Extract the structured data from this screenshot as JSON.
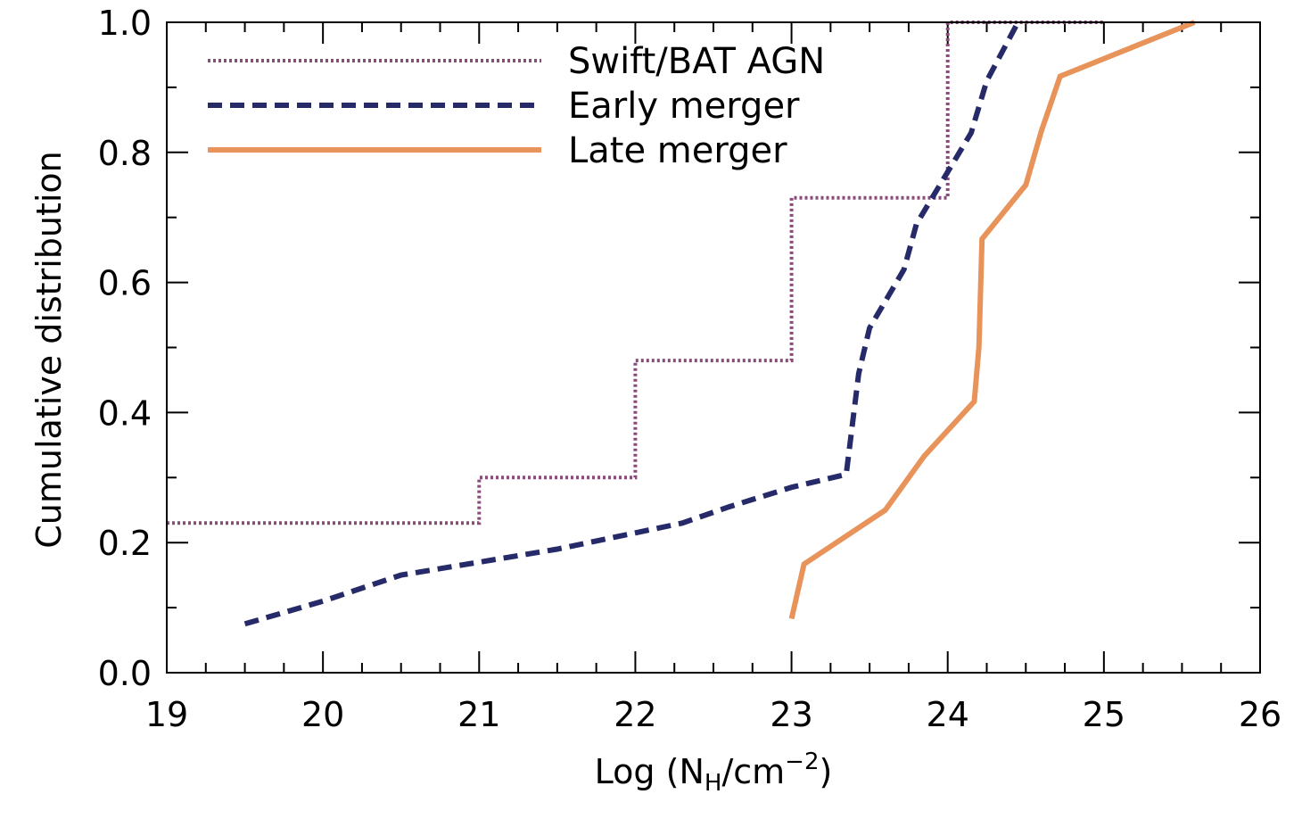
{
  "chart_data": {
    "type": "line",
    "xlabel": {
      "main": "Log (N",
      "sub": "H",
      "mid": "/cm",
      "sup": "−2",
      "end": ")"
    },
    "ylabel": "Cumulative distribution",
    "xlim": [
      19,
      26
    ],
    "ylim": [
      0,
      1.0
    ],
    "xticks": [
      19,
      20,
      21,
      22,
      23,
      24,
      25,
      26
    ],
    "yticks": [
      0.0,
      0.2,
      0.4,
      0.6,
      0.8,
      1.0
    ],
    "xtick_labels": [
      "19",
      "20",
      "21",
      "22",
      "23",
      "24",
      "25",
      "26"
    ],
    "ytick_labels": [
      "0.0",
      "0.2",
      "0.4",
      "0.6",
      "0.8",
      "1.0"
    ],
    "x_minor_step": 0.25,
    "y_minor_step": 0.1,
    "grid": false,
    "legend_position": "top-left",
    "series": [
      {
        "name": "Swift/BAT AGN",
        "color": "#8a4a7a",
        "style": "dotted",
        "step": true,
        "x": [
          19,
          21,
          21,
          22,
          22,
          23,
          23,
          24,
          24,
          25
        ],
        "y": [
          0.23,
          0.23,
          0.3,
          0.3,
          0.48,
          0.48,
          0.73,
          0.73,
          1.0,
          1.0
        ]
      },
      {
        "name": "Early merger",
        "color": "#262a68",
        "style": "dashed",
        "step": false,
        "x": [
          19.5,
          20.0,
          20.5,
          21.0,
          21.5,
          22.0,
          22.3,
          22.6,
          23.0,
          23.35,
          23.43,
          23.5,
          23.72,
          23.8,
          24.0,
          24.15,
          24.25,
          24.45
        ],
        "y": [
          0.075,
          0.11,
          0.15,
          0.17,
          0.19,
          0.215,
          0.23,
          0.255,
          0.285,
          0.305,
          0.46,
          0.53,
          0.62,
          0.69,
          0.77,
          0.83,
          0.91,
          1.0
        ]
      },
      {
        "name": "Late merger",
        "color": "#e8935a",
        "style": "solid",
        "step": false,
        "x": [
          23.0,
          23.08,
          23.6,
          23.85,
          24.17,
          24.2,
          24.22,
          24.5,
          24.6,
          24.72,
          25.58
        ],
        "y": [
          0.083,
          0.167,
          0.25,
          0.333,
          0.417,
          0.5,
          0.667,
          0.75,
          0.833,
          0.917,
          1.0
        ]
      }
    ]
  }
}
